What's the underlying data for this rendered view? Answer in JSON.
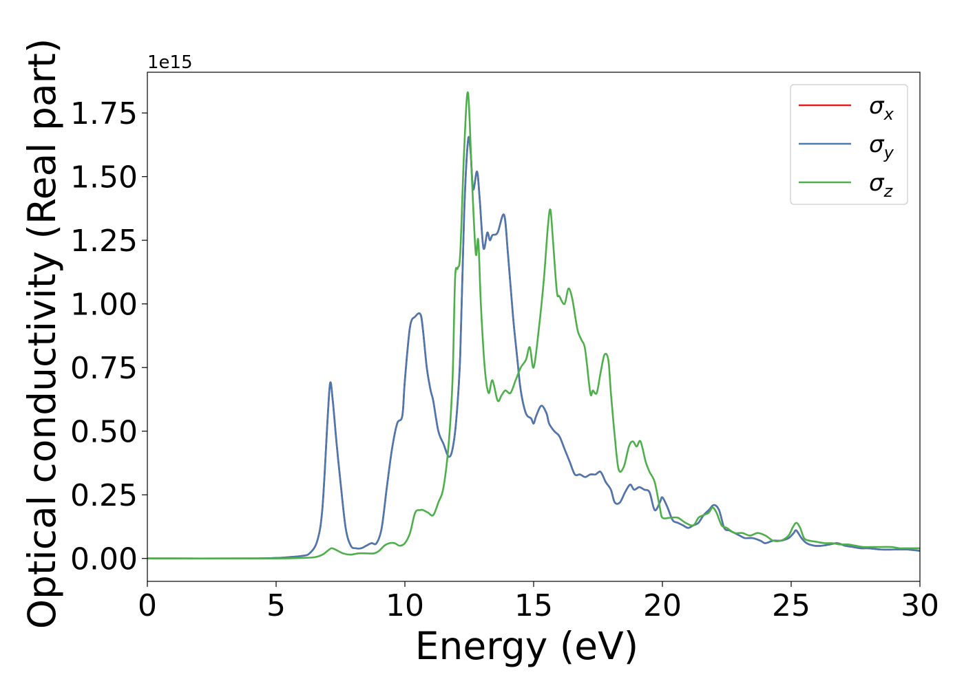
{
  "chart_data": {
    "type": "line",
    "title": "",
    "xlabel": "Energy (eV)",
    "ylabel": "Optical conductivity (Real part)",
    "y_offset_text": "1e15",
    "xlim": [
      0,
      30
    ],
    "ylim": [
      -0.09,
      1.91
    ],
    "y_scale": 1000000000000000.0,
    "xticks": [
      0,
      5,
      10,
      15,
      20,
      25,
      30
    ],
    "xtick_labels": [
      "0",
      "5",
      "10",
      "15",
      "20",
      "25",
      "30"
    ],
    "yticks": [
      0,
      0.25,
      0.5,
      0.75,
      1.0,
      1.25,
      1.5,
      1.75
    ],
    "ytick_labels": [
      "0.00",
      "0.25",
      "0.50",
      "0.75",
      "1.00",
      "1.25",
      "1.50",
      "1.75"
    ],
    "grid": false,
    "legend_position": "top-right",
    "series": [
      {
        "name": "σx",
        "legend_base": "σ",
        "legend_sub": "x",
        "color": "#e41a1c",
        "x": [
          0,
          4,
          5,
          5.5,
          6,
          6.3,
          6.6,
          6.8,
          7.0,
          7.1,
          7.2,
          7.35,
          7.5,
          7.7,
          7.9,
          8.1,
          8.3,
          8.5,
          8.7,
          8.9,
          9.1,
          9.3,
          9.5,
          9.7,
          9.9,
          10.0,
          10.2,
          10.4,
          10.6,
          10.7,
          10.85,
          11.0,
          11.1,
          11.3,
          11.5,
          11.7,
          11.85,
          12.0,
          12.15,
          12.3,
          12.45,
          12.55,
          12.65,
          12.8,
          12.9,
          13.05,
          13.2,
          13.3,
          13.4,
          13.6,
          13.85,
          14.0,
          14.2,
          14.35,
          14.5,
          14.7,
          14.9,
          15.0,
          15.1,
          15.3,
          15.5,
          15.6,
          15.8,
          16.0,
          16.2,
          16.4,
          16.6,
          16.8,
          17.0,
          17.2,
          17.4,
          17.6,
          17.8,
          18.0,
          18.15,
          18.35,
          18.55,
          18.75,
          18.9,
          19.1,
          19.3,
          19.5,
          19.7,
          19.9,
          20.0,
          20.2,
          20.4,
          20.6,
          20.8,
          21.0,
          21.2,
          21.4,
          21.6,
          21.8,
          22.0,
          22.2,
          22.4,
          22.6,
          22.8,
          23.0,
          23.2,
          23.5,
          23.8,
          24.0,
          24.3,
          24.6,
          24.9,
          25.1,
          25.2,
          25.4,
          25.6,
          25.9,
          26.2,
          26.5,
          26.8,
          27.1,
          27.4,
          27.7,
          28.0,
          28.5,
          29.0,
          29.5,
          30.0
        ],
        "y": [
          0.0,
          0.0,
          0.002,
          0.005,
          0.01,
          0.02,
          0.07,
          0.2,
          0.55,
          0.69,
          0.62,
          0.45,
          0.3,
          0.12,
          0.05,
          0.04,
          0.04,
          0.05,
          0.06,
          0.06,
          0.12,
          0.28,
          0.43,
          0.53,
          0.56,
          0.7,
          0.91,
          0.95,
          0.96,
          0.9,
          0.75,
          0.66,
          0.62,
          0.5,
          0.45,
          0.4,
          0.43,
          0.55,
          0.8,
          1.35,
          1.64,
          1.6,
          1.45,
          1.52,
          1.42,
          1.22,
          1.28,
          1.25,
          1.27,
          1.28,
          1.35,
          1.2,
          0.95,
          0.8,
          0.66,
          0.57,
          0.55,
          0.53,
          0.56,
          0.6,
          0.57,
          0.53,
          0.5,
          0.48,
          0.43,
          0.38,
          0.33,
          0.33,
          0.32,
          0.33,
          0.33,
          0.34,
          0.3,
          0.27,
          0.22,
          0.22,
          0.26,
          0.29,
          0.27,
          0.28,
          0.27,
          0.26,
          0.19,
          0.22,
          0.24,
          0.2,
          0.15,
          0.14,
          0.13,
          0.12,
          0.13,
          0.14,
          0.17,
          0.19,
          0.21,
          0.19,
          0.12,
          0.11,
          0.1,
          0.09,
          0.08,
          0.08,
          0.07,
          0.06,
          0.07,
          0.07,
          0.08,
          0.1,
          0.11,
          0.08,
          0.06,
          0.05,
          0.05,
          0.055,
          0.06,
          0.05,
          0.045,
          0.04,
          0.04,
          0.035,
          0.035,
          0.035,
          0.03
        ]
      },
      {
        "name": "σy",
        "legend_base": "σ",
        "legend_sub": "y",
        "color": "#4a78b0",
        "x": [
          0,
          4,
          5,
          5.5,
          6,
          6.3,
          6.6,
          6.8,
          7.0,
          7.1,
          7.2,
          7.35,
          7.5,
          7.7,
          7.9,
          8.1,
          8.3,
          8.5,
          8.7,
          8.9,
          9.1,
          9.3,
          9.5,
          9.7,
          9.9,
          10.0,
          10.2,
          10.4,
          10.6,
          10.7,
          10.85,
          11.0,
          11.1,
          11.3,
          11.5,
          11.7,
          11.85,
          12.0,
          12.15,
          12.3,
          12.45,
          12.55,
          12.65,
          12.8,
          12.9,
          13.05,
          13.2,
          13.3,
          13.4,
          13.6,
          13.85,
          14.0,
          14.2,
          14.35,
          14.5,
          14.7,
          14.9,
          15.0,
          15.1,
          15.3,
          15.5,
          15.6,
          15.8,
          16.0,
          16.2,
          16.4,
          16.6,
          16.8,
          17.0,
          17.2,
          17.4,
          17.6,
          17.8,
          18.0,
          18.15,
          18.35,
          18.55,
          18.75,
          18.9,
          19.1,
          19.3,
          19.5,
          19.7,
          19.9,
          20.0,
          20.2,
          20.4,
          20.6,
          20.8,
          21.0,
          21.2,
          21.4,
          21.6,
          21.8,
          22.0,
          22.2,
          22.4,
          22.6,
          22.8,
          23.0,
          23.2,
          23.5,
          23.8,
          24.0,
          24.3,
          24.6,
          24.9,
          25.1,
          25.2,
          25.4,
          25.6,
          25.9,
          26.2,
          26.5,
          26.8,
          27.1,
          27.4,
          27.7,
          28.0,
          28.5,
          29.0,
          29.5,
          30.0
        ],
        "y": [
          0.0,
          0.0,
          0.002,
          0.005,
          0.01,
          0.02,
          0.07,
          0.2,
          0.55,
          0.69,
          0.62,
          0.45,
          0.3,
          0.12,
          0.05,
          0.04,
          0.04,
          0.05,
          0.06,
          0.06,
          0.12,
          0.28,
          0.43,
          0.53,
          0.56,
          0.7,
          0.91,
          0.95,
          0.96,
          0.9,
          0.75,
          0.66,
          0.62,
          0.5,
          0.45,
          0.4,
          0.43,
          0.55,
          0.8,
          1.35,
          1.64,
          1.6,
          1.45,
          1.52,
          1.42,
          1.22,
          1.28,
          1.25,
          1.27,
          1.28,
          1.35,
          1.2,
          0.95,
          0.8,
          0.66,
          0.57,
          0.55,
          0.53,
          0.56,
          0.6,
          0.57,
          0.53,
          0.5,
          0.48,
          0.43,
          0.38,
          0.33,
          0.33,
          0.32,
          0.33,
          0.33,
          0.34,
          0.3,
          0.27,
          0.22,
          0.22,
          0.26,
          0.29,
          0.27,
          0.28,
          0.27,
          0.26,
          0.19,
          0.22,
          0.24,
          0.2,
          0.15,
          0.14,
          0.13,
          0.12,
          0.13,
          0.14,
          0.17,
          0.19,
          0.21,
          0.19,
          0.12,
          0.11,
          0.1,
          0.09,
          0.08,
          0.08,
          0.07,
          0.06,
          0.07,
          0.07,
          0.08,
          0.1,
          0.11,
          0.08,
          0.06,
          0.05,
          0.05,
          0.055,
          0.06,
          0.05,
          0.045,
          0.04,
          0.04,
          0.035,
          0.035,
          0.035,
          0.03
        ]
      },
      {
        "name": "σz",
        "legend_base": "σ",
        "legend_sub": "z",
        "color": "#4daf4a",
        "x": [
          0,
          4,
          5,
          6,
          6.5,
          6.8,
          7.0,
          7.15,
          7.3,
          7.6,
          7.9,
          8.2,
          8.5,
          8.8,
          9.0,
          9.2,
          9.4,
          9.6,
          9.8,
          10.0,
          10.2,
          10.4,
          10.6,
          10.7,
          10.9,
          11.1,
          11.3,
          11.5,
          11.7,
          11.85,
          11.95,
          12.05,
          12.15,
          12.3,
          12.45,
          12.6,
          12.75,
          12.85,
          12.95,
          13.1,
          13.25,
          13.4,
          13.6,
          13.75,
          13.9,
          14.1,
          14.3,
          14.5,
          14.7,
          14.85,
          15.0,
          15.2,
          15.4,
          15.55,
          15.65,
          15.75,
          15.9,
          16.0,
          16.2,
          16.35,
          16.5,
          16.7,
          16.85,
          17.0,
          17.2,
          17.3,
          17.45,
          17.6,
          17.75,
          17.9,
          18.0,
          18.15,
          18.3,
          18.5,
          18.7,
          18.85,
          19.0,
          19.15,
          19.35,
          19.5,
          19.7,
          19.9,
          20.0,
          20.3,
          20.6,
          20.9,
          21.2,
          21.4,
          21.6,
          21.8,
          21.95,
          22.1,
          22.3,
          22.5,
          22.8,
          23.1,
          23.4,
          23.7,
          24.0,
          24.3,
          24.6,
          24.9,
          25.05,
          25.2,
          25.35,
          25.5,
          25.7,
          26.0,
          26.3,
          26.6,
          26.9,
          27.2,
          27.5,
          27.8,
          28.1,
          28.5,
          28.9,
          29.2,
          29.5,
          30.0
        ],
        "y": [
          0.0,
          0.0,
          0.0,
          0.002,
          0.005,
          0.015,
          0.03,
          0.04,
          0.035,
          0.02,
          0.015,
          0.02,
          0.02,
          0.02,
          0.03,
          0.05,
          0.06,
          0.06,
          0.05,
          0.06,
          0.1,
          0.18,
          0.19,
          0.19,
          0.18,
          0.17,
          0.22,
          0.28,
          0.45,
          0.7,
          1.1,
          1.14,
          1.2,
          1.6,
          1.83,
          1.5,
          1.2,
          1.25,
          1.0,
          0.75,
          0.65,
          0.7,
          0.62,
          0.64,
          0.66,
          0.65,
          0.7,
          0.75,
          0.78,
          0.83,
          0.75,
          0.9,
          1.1,
          1.3,
          1.37,
          1.25,
          1.05,
          1.03,
          1.0,
          1.06,
          1.02,
          0.9,
          0.86,
          0.82,
          0.65,
          0.66,
          0.65,
          0.73,
          0.8,
          0.78,
          0.65,
          0.48,
          0.35,
          0.36,
          0.44,
          0.46,
          0.44,
          0.46,
          0.38,
          0.34,
          0.3,
          0.2,
          0.16,
          0.16,
          0.16,
          0.14,
          0.13,
          0.16,
          0.17,
          0.18,
          0.2,
          0.18,
          0.13,
          0.12,
          0.1,
          0.1,
          0.09,
          0.1,
          0.09,
          0.07,
          0.07,
          0.09,
          0.12,
          0.14,
          0.12,
          0.08,
          0.07,
          0.065,
          0.06,
          0.06,
          0.055,
          0.055,
          0.05,
          0.045,
          0.045,
          0.045,
          0.045,
          0.04,
          0.04,
          0.04
        ]
      }
    ]
  }
}
